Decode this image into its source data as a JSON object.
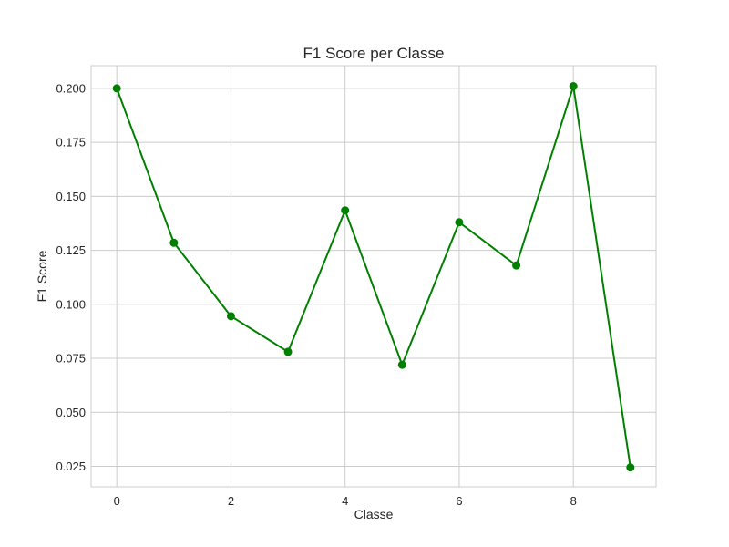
{
  "chart_data": {
    "type": "line",
    "title": "F1 Score per Classe",
    "xlabel": "Classe",
    "ylabel": "F1 Score",
    "x": [
      0,
      1,
      2,
      3,
      4,
      5,
      6,
      7,
      8,
      9
    ],
    "series": [
      {
        "values": [
          0.2,
          0.1285,
          0.0945,
          0.078,
          0.1435,
          0.072,
          0.138,
          0.118,
          0.201,
          0.0245
        ],
        "color": "#008000",
        "marker": "circle"
      }
    ],
    "xlim": [
      -0.45,
      9.45
    ],
    "ylim": [
      0.0155,
      0.2105
    ],
    "xticks": [
      0,
      2,
      4,
      6,
      8
    ],
    "xtick_labels": [
      "0",
      "2",
      "4",
      "6",
      "8"
    ],
    "yticks": [
      0.025,
      0.05,
      0.075,
      0.1,
      0.125,
      0.15,
      0.175,
      0.2
    ],
    "ytick_labels": [
      "0.025",
      "0.050",
      "0.075",
      "0.100",
      "0.125",
      "0.150",
      "0.175",
      "0.200"
    ],
    "grid": true,
    "colors": {
      "grid": "#cccccc",
      "frame": "#cccccc",
      "text": "#262626"
    }
  }
}
